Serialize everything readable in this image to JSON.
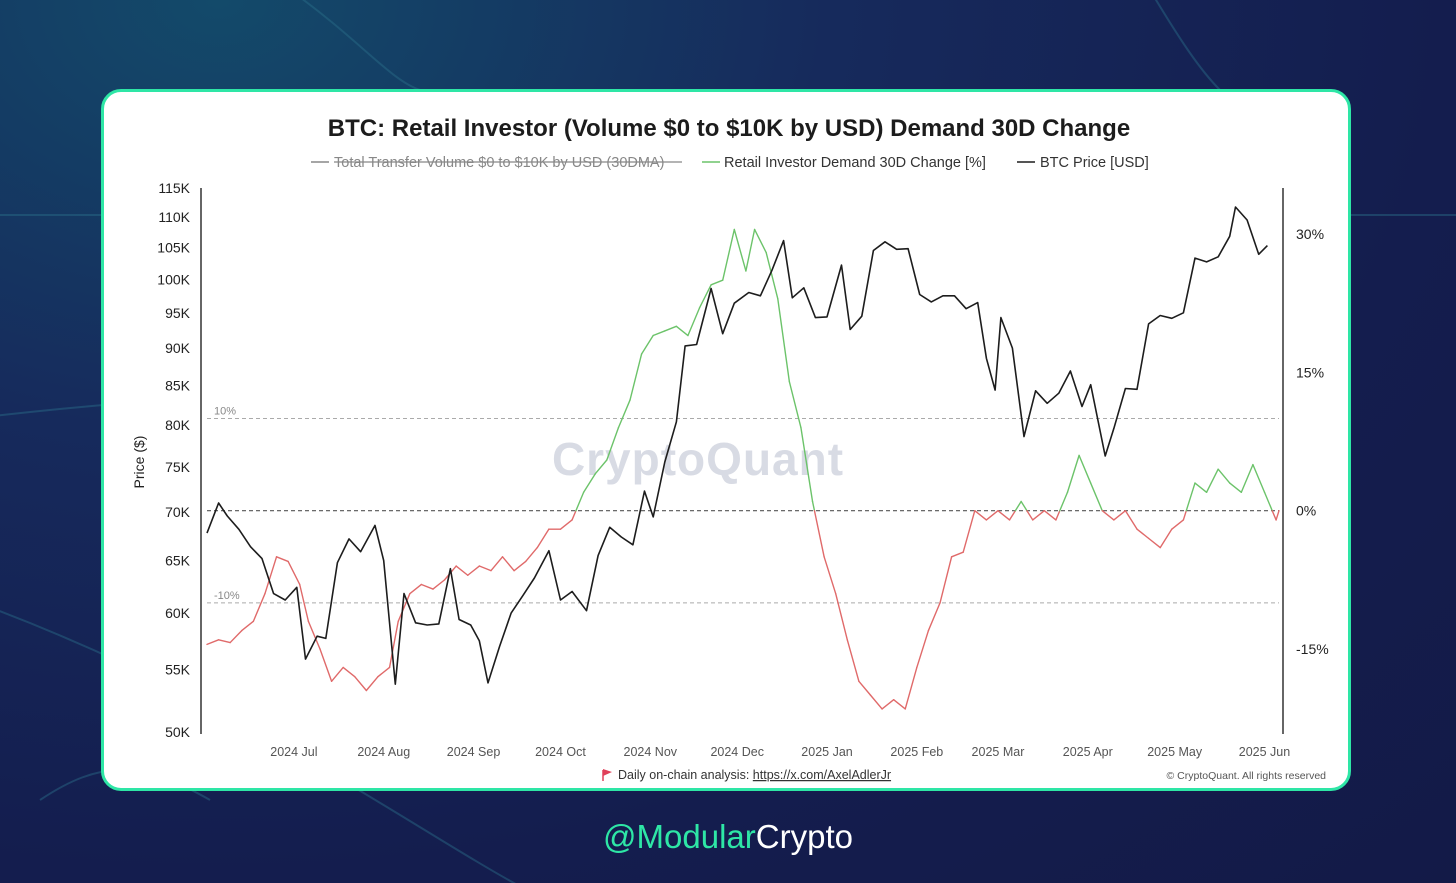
{
  "handle": {
    "accent": "@Modular",
    "rest": "Crypto"
  },
  "colors": {
    "card_border": "#2ee6a6",
    "retail_up": "#6cc36a",
    "retail_down": "#e06a6a",
    "price": "#1d1d1d"
  },
  "footer": {
    "flag_icon": "flag-icon",
    "prefix": "Daily on-chain analysis: ",
    "link_text": "https://x.com/AxelAdlerJr",
    "copyright": "© CryptoQuant. All rights reserved"
  },
  "chart_data": {
    "type": "line",
    "title": "BTC: Retail Investor (Volume $0 to $10K by USD) Demand 30D Change",
    "watermark": "CryptoQuant",
    "legend": [
      {
        "name": "Total Transfer Volume $0 to $10K by USD (30DMA)",
        "hidden": true
      },
      {
        "name": "Retail Investor Demand 30D Change [%]",
        "hidden": false
      },
      {
        "name": "BTC Price [USD]",
        "hidden": false
      }
    ],
    "ylabel_left": "Price ($)",
    "y_left_scale": "log",
    "y_left_ticks": [
      {
        "v": 50000,
        "label": "50K"
      },
      {
        "v": 55000,
        "label": "55K"
      },
      {
        "v": 60000,
        "label": "60K"
      },
      {
        "v": 65000,
        "label": "65K"
      },
      {
        "v": 70000,
        "label": "70K"
      },
      {
        "v": 75000,
        "label": "75K"
      },
      {
        "v": 80000,
        "label": "80K"
      },
      {
        "v": 85000,
        "label": "85K"
      },
      {
        "v": 90000,
        "label": "90K"
      },
      {
        "v": 95000,
        "label": "95K"
      },
      {
        "v": 100000,
        "label": "100K"
      },
      {
        "v": 105000,
        "label": "105K"
      },
      {
        "v": 110000,
        "label": "110K"
      },
      {
        "v": 115000,
        "label": "115K"
      }
    ],
    "y_right_ticks": [
      {
        "v": 30,
        "label": "30%"
      },
      {
        "v": 15,
        "label": "15%"
      },
      {
        "v": 0,
        "label": "0%"
      },
      {
        "v": -15,
        "label": "-15%"
      }
    ],
    "reference_lines": [
      {
        "v": 10,
        "label": "10%"
      },
      {
        "v": 0,
        "label": ""
      },
      {
        "v": -10,
        "label": "-10%"
      }
    ],
    "x_ticks": [
      {
        "date": "2024-07-01",
        "label": "2024 Jul"
      },
      {
        "date": "2024-08-01",
        "label": "2024 Aug"
      },
      {
        "date": "2024-09-01",
        "label": "2024 Sep"
      },
      {
        "date": "2024-10-01",
        "label": "2024 Oct"
      },
      {
        "date": "2024-11-01",
        "label": "2024 Nov"
      },
      {
        "date": "2024-12-01",
        "label": "2024 Dec"
      },
      {
        "date": "2025-01-01",
        "label": "2025 Jan"
      },
      {
        "date": "2025-02-01",
        "label": "2025 Feb"
      },
      {
        "date": "2025-03-01",
        "label": "2025 Mar"
      },
      {
        "date": "2025-04-01",
        "label": "2025 Apr"
      },
      {
        "date": "2025-05-01",
        "label": "2025 May"
      },
      {
        "date": "2025-06-01",
        "label": "2025 Jun"
      }
    ],
    "x_range": [
      "2024-06-01",
      "2025-06-06"
    ],
    "y_left_range": [
      50000,
      115000
    ],
    "y_right_range": [
      -24,
      35
    ],
    "series": [
      {
        "name": "BTC Price [USD]",
        "axis": "left",
        "points": [
          [
            "2024-06-01",
            67800
          ],
          [
            "2024-06-05",
            71000
          ],
          [
            "2024-06-08",
            69600
          ],
          [
            "2024-06-12",
            68200
          ],
          [
            "2024-06-16",
            66400
          ],
          [
            "2024-06-20",
            65200
          ],
          [
            "2024-06-24",
            61800
          ],
          [
            "2024-06-28",
            61200
          ],
          [
            "2024-07-02",
            62400
          ],
          [
            "2024-07-05",
            55900
          ],
          [
            "2024-07-09",
            57900
          ],
          [
            "2024-07-12",
            57700
          ],
          [
            "2024-07-16",
            64800
          ],
          [
            "2024-07-20",
            67200
          ],
          [
            "2024-07-24",
            65900
          ],
          [
            "2024-07-29",
            68600
          ],
          [
            "2024-08-01",
            65000
          ],
          [
            "2024-08-05",
            53800
          ],
          [
            "2024-08-08",
            61800
          ],
          [
            "2024-08-12",
            59100
          ],
          [
            "2024-08-16",
            58900
          ],
          [
            "2024-08-20",
            59000
          ],
          [
            "2024-08-24",
            64200
          ],
          [
            "2024-08-27",
            59400
          ],
          [
            "2024-08-31",
            58900
          ],
          [
            "2024-09-03",
            57500
          ],
          [
            "2024-09-06",
            53900
          ],
          [
            "2024-09-10",
            57000
          ],
          [
            "2024-09-14",
            60000
          ],
          [
            "2024-09-18",
            61600
          ],
          [
            "2024-09-22",
            63300
          ],
          [
            "2024-09-27",
            66000
          ],
          [
            "2024-10-01",
            61200
          ],
          [
            "2024-10-05",
            62000
          ],
          [
            "2024-10-10",
            60200
          ],
          [
            "2024-10-14",
            65500
          ],
          [
            "2024-10-18",
            68400
          ],
          [
            "2024-10-22",
            67400
          ],
          [
            "2024-10-26",
            66600
          ],
          [
            "2024-10-30",
            72300
          ],
          [
            "2024-11-02",
            69500
          ],
          [
            "2024-11-06",
            75600
          ],
          [
            "2024-11-10",
            80400
          ],
          [
            "2024-11-13",
            90300
          ],
          [
            "2024-11-17",
            90500
          ],
          [
            "2024-11-22",
            98600
          ],
          [
            "2024-11-26",
            92000
          ],
          [
            "2024-11-30",
            96400
          ],
          [
            "2024-12-05",
            98000
          ],
          [
            "2024-12-09",
            97500
          ],
          [
            "2024-12-13",
            101400
          ],
          [
            "2024-12-17",
            106100
          ],
          [
            "2024-12-20",
            97200
          ],
          [
            "2024-12-24",
            98700
          ],
          [
            "2024-12-28",
            94300
          ],
          [
            "2025-01-01",
            94400
          ],
          [
            "2025-01-06",
            102200
          ],
          [
            "2025-01-09",
            92600
          ],
          [
            "2025-01-13",
            94500
          ],
          [
            "2025-01-17",
            104500
          ],
          [
            "2025-01-21",
            105900
          ],
          [
            "2025-01-25",
            104700
          ],
          [
            "2025-01-29",
            104800
          ],
          [
            "2025-02-02",
            97700
          ],
          [
            "2025-02-06",
            96600
          ],
          [
            "2025-02-10",
            97500
          ],
          [
            "2025-02-14",
            97500
          ],
          [
            "2025-02-18",
            95600
          ],
          [
            "2025-02-22",
            96500
          ],
          [
            "2025-02-25",
            88600
          ],
          [
            "2025-02-28",
            84400
          ],
          [
            "2025-03-02",
            94300
          ],
          [
            "2025-03-06",
            90000
          ],
          [
            "2025-03-10",
            78600
          ],
          [
            "2025-03-14",
            84300
          ],
          [
            "2025-03-18",
            82700
          ],
          [
            "2025-03-22",
            84000
          ],
          [
            "2025-03-26",
            86900
          ],
          [
            "2025-03-30",
            82300
          ],
          [
            "2025-04-02",
            85100
          ],
          [
            "2025-04-07",
            76300
          ],
          [
            "2025-04-10",
            79600
          ],
          [
            "2025-04-14",
            84600
          ],
          [
            "2025-04-18",
            84500
          ],
          [
            "2025-04-22",
            93400
          ],
          [
            "2025-04-26",
            94600
          ],
          [
            "2025-04-30",
            94200
          ],
          [
            "2025-05-04",
            95000
          ],
          [
            "2025-05-08",
            103300
          ],
          [
            "2025-05-12",
            102700
          ],
          [
            "2025-05-16",
            103500
          ],
          [
            "2025-05-20",
            106800
          ],
          [
            "2025-05-22",
            111700
          ],
          [
            "2025-05-26",
            109500
          ],
          [
            "2025-05-30",
            103900
          ],
          [
            "2025-06-02",
            105300
          ]
        ]
      },
      {
        "name": "Retail Investor Demand 30D Change [%]",
        "axis": "right",
        "points": [
          [
            "2024-06-01",
            -14.5
          ],
          [
            "2024-06-05",
            -14.0
          ],
          [
            "2024-06-09",
            -14.3
          ],
          [
            "2024-06-13",
            -13.0
          ],
          [
            "2024-06-17",
            -12.0
          ],
          [
            "2024-06-21",
            -9.0
          ],
          [
            "2024-06-25",
            -5.0
          ],
          [
            "2024-06-29",
            -5.5
          ],
          [
            "2024-07-03",
            -8.0
          ],
          [
            "2024-07-06",
            -12.0
          ],
          [
            "2024-07-10",
            -15.0
          ],
          [
            "2024-07-14",
            -18.5
          ],
          [
            "2024-07-18",
            -17.0
          ],
          [
            "2024-07-22",
            -18.0
          ],
          [
            "2024-07-26",
            -19.5
          ],
          [
            "2024-07-30",
            -18.0
          ],
          [
            "2024-08-03",
            -17.0
          ],
          [
            "2024-08-06",
            -12.0
          ],
          [
            "2024-08-10",
            -9.0
          ],
          [
            "2024-08-14",
            -8.0
          ],
          [
            "2024-08-18",
            -8.5
          ],
          [
            "2024-08-22",
            -7.5
          ],
          [
            "2024-08-26",
            -6.0
          ],
          [
            "2024-08-30",
            -7.0
          ],
          [
            "2024-09-03",
            -6.0
          ],
          [
            "2024-09-07",
            -6.5
          ],
          [
            "2024-09-11",
            -5.0
          ],
          [
            "2024-09-15",
            -6.5
          ],
          [
            "2024-09-19",
            -5.5
          ],
          [
            "2024-09-23",
            -4.0
          ],
          [
            "2024-09-27",
            -2.0
          ],
          [
            "2024-10-01",
            -2.0
          ],
          [
            "2024-10-05",
            -1.0
          ],
          [
            "2024-10-09",
            2.0
          ],
          [
            "2024-10-13",
            4.0
          ],
          [
            "2024-10-17",
            5.5
          ],
          [
            "2024-10-21",
            9.0
          ],
          [
            "2024-10-25",
            12.0
          ],
          [
            "2024-10-29",
            17.0
          ],
          [
            "2024-11-02",
            19.0
          ],
          [
            "2024-11-06",
            19.5
          ],
          [
            "2024-11-10",
            20.0
          ],
          [
            "2024-11-14",
            19.0
          ],
          [
            "2024-11-18",
            22.0
          ],
          [
            "2024-11-22",
            24.5
          ],
          [
            "2024-11-26",
            25.0
          ],
          [
            "2024-11-30",
            30.5
          ],
          [
            "2024-12-04",
            26.0
          ],
          [
            "2024-12-07",
            30.5
          ],
          [
            "2024-12-11",
            28.0
          ],
          [
            "2024-12-15",
            23.0
          ],
          [
            "2024-12-19",
            14.0
          ],
          [
            "2024-12-23",
            9.0
          ],
          [
            "2024-12-27",
            1.0
          ],
          [
            "2024-12-31",
            -5.0
          ],
          [
            "2025-01-04",
            -9.0
          ],
          [
            "2025-01-08",
            -14.0
          ],
          [
            "2025-01-12",
            -18.5
          ],
          [
            "2025-01-16",
            -20.0
          ],
          [
            "2025-01-20",
            -21.5
          ],
          [
            "2025-01-24",
            -20.5
          ],
          [
            "2025-01-28",
            -21.5
          ],
          [
            "2025-02-01",
            -17.0
          ],
          [
            "2025-02-05",
            -13.0
          ],
          [
            "2025-02-09",
            -10.0
          ],
          [
            "2025-02-13",
            -5.0
          ],
          [
            "2025-02-17",
            -4.5
          ],
          [
            "2025-02-21",
            0.0
          ],
          [
            "2025-02-25",
            -1.0
          ],
          [
            "2025-03-01",
            0.0
          ],
          [
            "2025-03-05",
            -1.0
          ],
          [
            "2025-03-09",
            1.0
          ],
          [
            "2025-03-13",
            -1.0
          ],
          [
            "2025-03-17",
            0.0
          ],
          [
            "2025-03-21",
            -1.0
          ],
          [
            "2025-03-25",
            2.0
          ],
          [
            "2025-03-29",
            6.0
          ],
          [
            "2025-04-02",
            3.0
          ],
          [
            "2025-04-06",
            0.0
          ],
          [
            "2025-04-10",
            -1.0
          ],
          [
            "2025-04-14",
            0.0
          ],
          [
            "2025-04-18",
            -2.0
          ],
          [
            "2025-04-22",
            -3.0
          ],
          [
            "2025-04-26",
            -4.0
          ],
          [
            "2025-04-30",
            -2.0
          ],
          [
            "2025-05-04",
            -1.0
          ],
          [
            "2025-05-08",
            3.0
          ],
          [
            "2025-05-12",
            2.0
          ],
          [
            "2025-05-16",
            4.5
          ],
          [
            "2025-05-20",
            3.0
          ],
          [
            "2025-05-24",
            2.0
          ],
          [
            "2025-05-28",
            5.0
          ],
          [
            "2025-06-01",
            2.0
          ],
          [
            "2025-06-05",
            -1.0
          ],
          [
            "2025-06-06",
            0.0
          ]
        ]
      }
    ]
  }
}
